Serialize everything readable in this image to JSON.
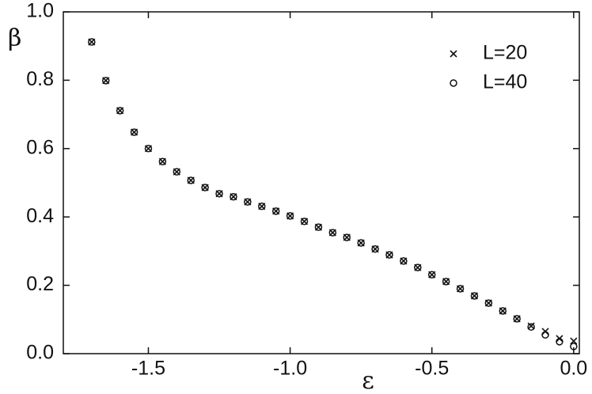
{
  "chart_data": {
    "type": "scatter",
    "x_label": "ε",
    "y_label": "β",
    "x": [
      -1.7,
      -1.65,
      -1.6,
      -1.55,
      -1.5,
      -1.45,
      -1.4,
      -1.35,
      -1.3,
      -1.25,
      -1.2,
      -1.15,
      -1.1,
      -1.05,
      -1.0,
      -0.95,
      -0.9,
      -0.85,
      -0.8,
      -0.75,
      -0.7,
      -0.65,
      -0.6,
      -0.55,
      -0.5,
      -0.45,
      -0.4,
      -0.35,
      -0.3,
      -0.25,
      -0.2,
      -0.15,
      -0.1,
      -0.05,
      0.0
    ],
    "series": [
      {
        "name": "L=20",
        "marker": "x",
        "color": "#111111",
        "values": [
          0.912,
          0.799,
          0.711,
          0.648,
          0.6,
          0.562,
          0.532,
          0.507,
          0.486,
          0.468,
          0.459,
          0.444,
          0.431,
          0.417,
          0.403,
          0.387,
          0.37,
          0.354,
          0.34,
          0.324,
          0.306,
          0.289,
          0.271,
          0.252,
          0.231,
          0.211,
          0.19,
          0.169,
          0.148,
          0.125,
          0.102,
          0.081,
          0.065,
          0.044,
          0.037
        ]
      },
      {
        "name": "L=40",
        "marker": "o",
        "color": "#111111",
        "values": [
          0.912,
          0.799,
          0.711,
          0.648,
          0.6,
          0.562,
          0.532,
          0.507,
          0.486,
          0.468,
          0.459,
          0.444,
          0.431,
          0.417,
          0.403,
          0.387,
          0.37,
          0.354,
          0.34,
          0.324,
          0.306,
          0.289,
          0.271,
          0.252,
          0.231,
          0.211,
          0.19,
          0.169,
          0.148,
          0.125,
          0.102,
          0.078,
          0.055,
          0.035,
          0.021
        ]
      }
    ],
    "xlim": [
      -1.8,
      0.02
    ],
    "ylim": [
      0,
      1.0
    ],
    "xticks": [
      -1.5,
      {
        "value": -1.0,
        "label": "-1.0"
      },
      -0.5,
      {
        "value": 0,
        "label": "0.0"
      }
    ],
    "yticks": [
      {
        "value": 0,
        "label": "0.0"
      },
      0.2,
      0.4,
      0.6,
      0.8,
      {
        "value": 1.0,
        "label": "1.0"
      }
    ],
    "legend": "upper-right",
    "grid": false
  }
}
